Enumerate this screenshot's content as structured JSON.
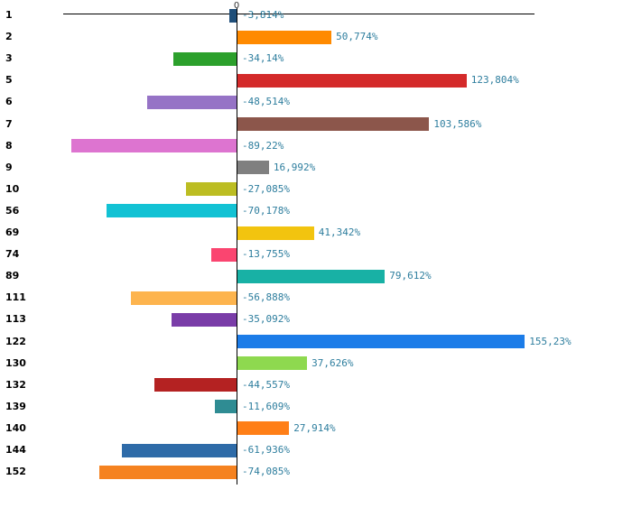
{
  "chart_data": {
    "type": "bar",
    "orientation": "horizontal",
    "title": "",
    "xlabel": "",
    "ylabel": "",
    "grid": false,
    "legend": "none",
    "zero_tick_label": "0",
    "value_suffix": "%",
    "decimal_separator": ",",
    "xlim": [
      -94,
      161
    ],
    "categories": [
      "1",
      "2",
      "3",
      "5",
      "6",
      "7",
      "8",
      "9",
      "10",
      "56",
      "69",
      "74",
      "89",
      "111",
      "113",
      "122",
      "130",
      "132",
      "139",
      "140",
      "144",
      "152"
    ],
    "values": [
      -3.814,
      50.774,
      -34.14,
      123.804,
      -48.514,
      103.586,
      -89.22,
      16.992,
      -27.085,
      -70.178,
      41.342,
      -13.755,
      79.612,
      -56.888,
      -35.092,
      155.23,
      37.626,
      -44.557,
      -11.609,
      27.914,
      -61.936,
      -74.085
    ],
    "value_labels": [
      "-3,814%",
      "50,774%",
      "-34,14%",
      "123,804%",
      "-48,514%",
      "103,586%",
      "-89,22%",
      "16,992%",
      "-27,085%",
      "-70,178%",
      "41,342%",
      "-13,755%",
      "79,612%",
      "-56,888%",
      "-35,092%",
      "155,23%",
      "37,626%",
      "-44,557%",
      "-11,609%",
      "27,914%",
      "-61,936%",
      "-74,085%"
    ],
    "bar_colors": [
      "#1F4E79",
      "#FF8A00",
      "#2CA02C",
      "#D42A2A",
      "#9673C6",
      "#8C564B",
      "#DD74D0",
      "#808080",
      "#BCBD22",
      "#12C2D4",
      "#F2C40F",
      "#FA4570",
      "#18B1A5",
      "#FDB44E",
      "#7A3DA8",
      "#1C7CE8",
      "#8ED94F",
      "#B42222",
      "#2F8C93",
      "#FF7F17",
      "#2E6BA8",
      "#F58220"
    ],
    "value_label_color": "#2E7E9E",
    "category_label_color": "#000000",
    "axis_color": "#000000"
  }
}
